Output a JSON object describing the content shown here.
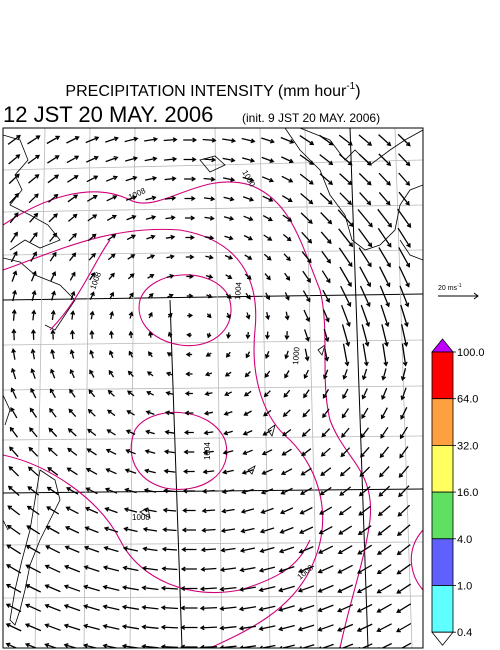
{
  "title": {
    "text": "PRECIPITATION INTENSITY (mm hour",
    "superscript": "-1",
    "close": ")"
  },
  "valid_time": "12 JST 20 MAY. 2006",
  "init_time": "(init. 9 JST 20 MAY. 2006)",
  "vector_scale": {
    "text": "20 ms",
    "superscript": "-1"
  },
  "contour_labels": [
    "1008",
    "1008",
    "1004",
    "1004",
    "1000",
    "1000",
    "1000",
    "1008"
  ],
  "colorbar": {
    "levels": [
      {
        "value": 100,
        "label": "100.0"
      },
      {
        "value": 64,
        "label": "64.0"
      },
      {
        "value": 32,
        "label": "32.0"
      },
      {
        "value": 16,
        "label": "16.0"
      },
      {
        "value": 4,
        "label": "4.0"
      },
      {
        "value": 1,
        "label": "1.0"
      },
      {
        "value": 0.4,
        "label": "0.4"
      }
    ],
    "colors": [
      "#ff0000",
      "#ffa040",
      "#ffff60",
      "#60e060",
      "#6060ff",
      "#60ffff"
    ],
    "over_color": "#c000ff",
    "under_color": "#ffffff"
  }
}
